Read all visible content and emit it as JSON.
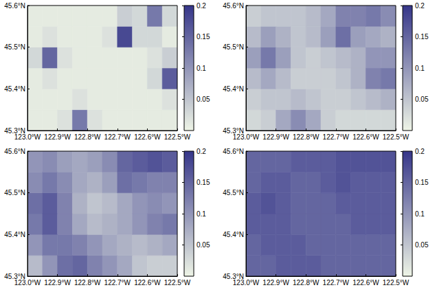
{
  "chart_data": [
    {
      "type": "heatmap",
      "xlim": [
        -123.0,
        -122.5
      ],
      "ylim": [
        45.3,
        45.6
      ],
      "xticks": [
        {
          "value": -123.0,
          "label": "123.0°W"
        },
        {
          "value": -122.9,
          "label": "122.9°W"
        },
        {
          "value": -122.8,
          "label": "122.8°W"
        },
        {
          "value": -122.7,
          "label": "122.7°W"
        },
        {
          "value": -122.6,
          "label": "122.6°W"
        },
        {
          "value": -122.5,
          "label": "122.5°W"
        }
      ],
      "yticks": [
        {
          "value": 45.3,
          "label": "45.3°N"
        },
        {
          "value": 45.4,
          "label": "45.4°N"
        },
        {
          "value": 45.5,
          "label": "45.5°N"
        },
        {
          "value": 45.6,
          "label": "45.6°N"
        }
      ],
      "grid": false,
      "x_edges": [
        -123.0,
        -122.95,
        -122.9,
        -122.85,
        -122.8,
        -122.75,
        -122.7,
        -122.65,
        -122.6,
        -122.55,
        -122.5
      ],
      "y_edges": [
        45.3,
        45.35,
        45.4,
        45.45,
        45.5,
        45.55,
        45.6
      ],
      "cells": [
        [
          0.01,
          0.01,
          0.02,
          0.13,
          0.02,
          0.01,
          0.01,
          0.01,
          0.01,
          0.01
        ],
        [
          0.01,
          0.01,
          0.01,
          0.02,
          0.01,
          0.01,
          0.01,
          0.01,
          0.01,
          0.02
        ],
        [
          0.01,
          0.02,
          0.01,
          0.01,
          0.01,
          0.01,
          0.01,
          0.01,
          0.03,
          0.16
        ],
        [
          0.03,
          0.15,
          0.02,
          0.01,
          0.01,
          0.01,
          0.01,
          0.01,
          0.02,
          0.04
        ],
        [
          0.01,
          0.02,
          0.01,
          0.01,
          0.01,
          0.02,
          0.18,
          0.03,
          0.03,
          0.01
        ],
        [
          0.01,
          0.01,
          0.01,
          0.01,
          0.01,
          0.01,
          0.04,
          0.03,
          0.13,
          0.03
        ]
      ],
      "color_range": [
        0,
        0.2
      ],
      "color_ticks": [
        0.05,
        0.1,
        0.15,
        0.2
      ]
    },
    {
      "type": "heatmap",
      "xlim": [
        -123.0,
        -122.5
      ],
      "ylim": [
        45.3,
        45.6
      ],
      "xticks": [
        {
          "value": -123.0,
          "label": "123.0°W"
        },
        {
          "value": -122.9,
          "label": "122.9°W"
        },
        {
          "value": -122.8,
          "label": "122.8°W"
        },
        {
          "value": -122.7,
          "label": "122.7°W"
        },
        {
          "value": -122.6,
          "label": "122.6°W"
        },
        {
          "value": -122.5,
          "label": "122.5°W"
        }
      ],
      "yticks": [
        {
          "value": 45.3,
          "label": "45.3°N"
        },
        {
          "value": 45.4,
          "label": "45.4°N"
        },
        {
          "value": 45.5,
          "label": "45.5°N"
        },
        {
          "value": 45.6,
          "label": "45.6°N"
        }
      ],
      "grid": false,
      "x_edges": [
        -123.0,
        -122.95,
        -122.9,
        -122.85,
        -122.8,
        -122.75,
        -122.7,
        -122.65,
        -122.6,
        -122.55,
        -122.5
      ],
      "y_edges": [
        45.3,
        45.35,
        45.4,
        45.45,
        45.5,
        45.55,
        45.6
      ],
      "cells": [
        [
          0.03,
          0.04,
          0.08,
          0.11,
          0.08,
          0.04,
          0.03,
          0.03,
          0.03,
          0.03
        ],
        [
          0.04,
          0.05,
          0.05,
          0.06,
          0.05,
          0.04,
          0.04,
          0.05,
          0.06,
          0.07
        ],
        [
          0.06,
          0.08,
          0.06,
          0.04,
          0.04,
          0.04,
          0.05,
          0.07,
          0.12,
          0.13
        ],
        [
          0.09,
          0.13,
          0.09,
          0.05,
          0.04,
          0.05,
          0.06,
          0.07,
          0.1,
          0.1
        ],
        [
          0.06,
          0.09,
          0.07,
          0.05,
          0.06,
          0.09,
          0.14,
          0.09,
          0.08,
          0.07
        ],
        [
          0.04,
          0.05,
          0.05,
          0.05,
          0.06,
          0.08,
          0.12,
          0.12,
          0.13,
          0.11
        ]
      ],
      "color_range": [
        0,
        0.2
      ],
      "color_ticks": [
        0.05,
        0.1,
        0.15,
        0.2
      ]
    },
    {
      "type": "heatmap",
      "xlim": [
        -123.0,
        -122.5
      ],
      "ylim": [
        45.3,
        45.6
      ],
      "xticks": [
        {
          "value": -123.0,
          "label": "123.0°W"
        },
        {
          "value": -122.9,
          "label": "122.9°W"
        },
        {
          "value": -122.8,
          "label": "122.8°W"
        },
        {
          "value": -122.7,
          "label": "122.7°W"
        },
        {
          "value": -122.6,
          "label": "122.6°W"
        },
        {
          "value": -122.5,
          "label": "122.5°W"
        }
      ],
      "yticks": [
        {
          "value": 45.3,
          "label": "45.3°N"
        },
        {
          "value": 45.4,
          "label": "45.4°N"
        },
        {
          "value": 45.5,
          "label": "45.5°N"
        },
        {
          "value": 45.6,
          "label": "45.6°N"
        }
      ],
      "grid": false,
      "x_edges": [
        -123.0,
        -122.95,
        -122.9,
        -122.85,
        -122.8,
        -122.75,
        -122.7,
        -122.65,
        -122.6,
        -122.55,
        -122.5
      ],
      "y_edges": [
        45.3,
        45.35,
        45.4,
        45.45,
        45.5,
        45.55,
        45.6
      ],
      "cells": [
        [
          0.06,
          0.1,
          0.14,
          0.15,
          0.12,
          0.1,
          0.08,
          0.05,
          0.04,
          0.04
        ],
        [
          0.1,
          0.13,
          0.13,
          0.12,
          0.1,
          0.08,
          0.07,
          0.06,
          0.07,
          0.08
        ],
        [
          0.13,
          0.16,
          0.12,
          0.08,
          0.06,
          0.07,
          0.08,
          0.1,
          0.12,
          0.13
        ],
        [
          0.14,
          0.16,
          0.12,
          0.07,
          0.05,
          0.06,
          0.08,
          0.1,
          0.11,
          0.1
        ],
        [
          0.11,
          0.13,
          0.11,
          0.08,
          0.07,
          0.09,
          0.14,
          0.13,
          0.12,
          0.12
        ],
        [
          0.1,
          0.11,
          0.09,
          0.08,
          0.09,
          0.11,
          0.15,
          0.16,
          0.17,
          0.16
        ]
      ],
      "color_range": [
        0,
        0.2
      ],
      "color_ticks": [
        0.05,
        0.1,
        0.15,
        0.2
      ]
    },
    {
      "type": "heatmap",
      "xlim": [
        -123.0,
        -122.5
      ],
      "ylim": [
        45.3,
        45.6
      ],
      "xticks": [
        {
          "value": -123.0,
          "label": "123.0°W"
        },
        {
          "value": -122.9,
          "label": "122.9°W"
        },
        {
          "value": -122.8,
          "label": "122.8°W"
        },
        {
          "value": -122.7,
          "label": "122.7°W"
        },
        {
          "value": -122.6,
          "label": "122.6°W"
        },
        {
          "value": -122.5,
          "label": "122.5°W"
        }
      ],
      "yticks": [
        {
          "value": 45.3,
          "label": "45.3°N"
        },
        {
          "value": 45.4,
          "label": "45.4°N"
        },
        {
          "value": 45.5,
          "label": "45.5°N"
        },
        {
          "value": 45.6,
          "label": "45.6°N"
        }
      ],
      "grid": false,
      "x_edges": [
        -123.0,
        -122.95,
        -122.9,
        -122.85,
        -122.8,
        -122.75,
        -122.7,
        -122.65,
        -122.6,
        -122.55,
        -122.5
      ],
      "y_edges": [
        45.3,
        45.35,
        45.4,
        45.45,
        45.5,
        45.55,
        45.6
      ],
      "cells": [
        [
          0.15,
          0.15,
          0.16,
          0.16,
          0.16,
          0.15,
          0.15,
          0.15,
          0.15,
          0.15
        ],
        [
          0.15,
          0.16,
          0.16,
          0.16,
          0.15,
          0.15,
          0.15,
          0.15,
          0.15,
          0.15
        ],
        [
          0.16,
          0.16,
          0.16,
          0.15,
          0.15,
          0.15,
          0.15,
          0.16,
          0.16,
          0.16
        ],
        [
          0.16,
          0.17,
          0.16,
          0.15,
          0.15,
          0.15,
          0.16,
          0.16,
          0.16,
          0.16
        ],
        [
          0.15,
          0.16,
          0.16,
          0.15,
          0.15,
          0.16,
          0.17,
          0.16,
          0.16,
          0.16
        ],
        [
          0.15,
          0.15,
          0.15,
          0.16,
          0.16,
          0.16,
          0.17,
          0.17,
          0.17,
          0.17
        ]
      ],
      "color_range": [
        0,
        0.2
      ],
      "color_ticks": [
        0.05,
        0.1,
        0.15,
        0.2
      ]
    }
  ]
}
